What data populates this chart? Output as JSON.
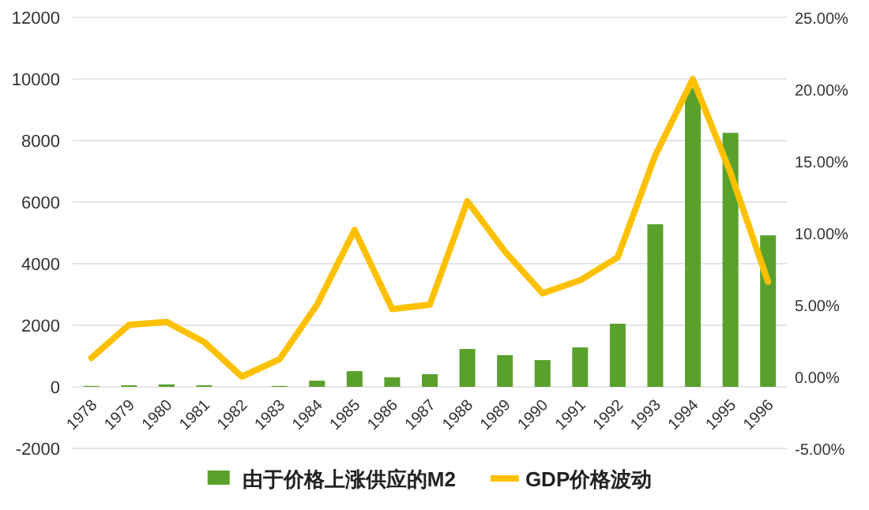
{
  "chart_data": {
    "type": "bar",
    "categories": [
      "1978",
      "1979",
      "1980",
      "1981",
      "1982",
      "1983",
      "1984",
      "1985",
      "1986",
      "1987",
      "1988",
      "1989",
      "1990",
      "1991",
      "1992",
      "1993",
      "1994",
      "1995",
      "1996"
    ],
    "series": [
      {
        "name": "由于价格上涨供应的M2",
        "color": "#5aa02c",
        "values": [
          30,
          50,
          80,
          50,
          0,
          30,
          200,
          510,
          310,
          410,
          1230,
          1030,
          870,
          1280,
          2050,
          5280,
          9700,
          8250,
          4920
        ]
      },
      {
        "name": "GDP价格波动",
        "type": "line",
        "axis": "y2",
        "color": "#ffc000",
        "values": [
          1.3,
          3.6,
          3.8,
          2.4,
          0,
          1.2,
          5.0,
          10.2,
          4.7,
          5.0,
          12.2,
          8.7,
          5.8,
          6.7,
          8.3,
          15.4,
          20.7,
          14.2,
          6.6
        ]
      }
    ],
    "ylim": [
      -2000,
      12000
    ],
    "yticks": [
      -2000,
      0,
      2000,
      4000,
      6000,
      8000,
      10000,
      12000
    ],
    "y2lim": [
      -5,
      25
    ],
    "y2ticks": [
      {
        "value": -5,
        "label": "-5.00%"
      },
      {
        "value": 0,
        "label": "0.00%"
      },
      {
        "value": 5,
        "label": "5.00%"
      },
      {
        "value": 10,
        "label": "10.00%"
      },
      {
        "value": 15,
        "label": "15.00%"
      },
      {
        "value": 20,
        "label": "20.00%"
      },
      {
        "value": 25,
        "label": "25.00%"
      }
    ],
    "grid": "y",
    "legend": "bottom"
  }
}
